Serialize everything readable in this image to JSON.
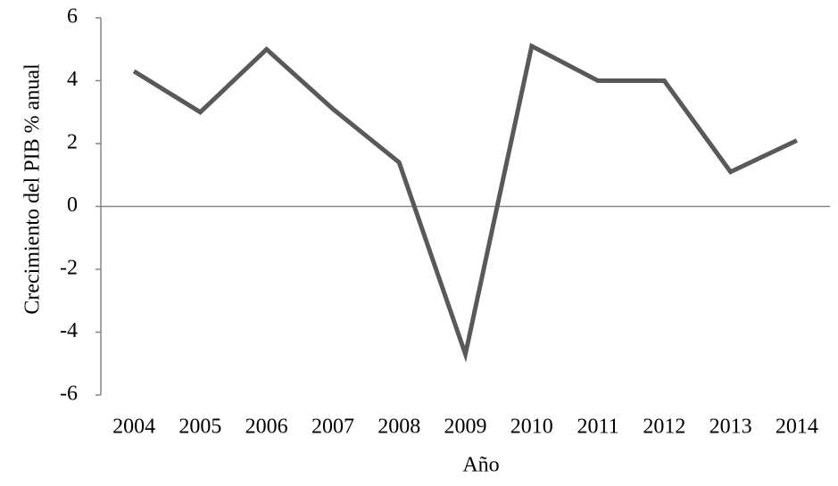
{
  "chart_data": {
    "type": "line",
    "x_label": "Año",
    "y_label": "Crecimiento del PIB % anual",
    "categories": [
      "2004",
      "2005",
      "2006",
      "2007",
      "2008",
      "2009",
      "2010",
      "2011",
      "2012",
      "2013",
      "2014"
    ],
    "values": [
      4.3,
      3.0,
      5.0,
      3.1,
      1.4,
      -4.7,
      5.1,
      4.0,
      4.0,
      1.1,
      2.1
    ],
    "color": "#595959",
    "ylim": [
      -6,
      6
    ],
    "yticks": [
      -6,
      -4,
      -2,
      0,
      2,
      4,
      6
    ],
    "grid": false
  }
}
